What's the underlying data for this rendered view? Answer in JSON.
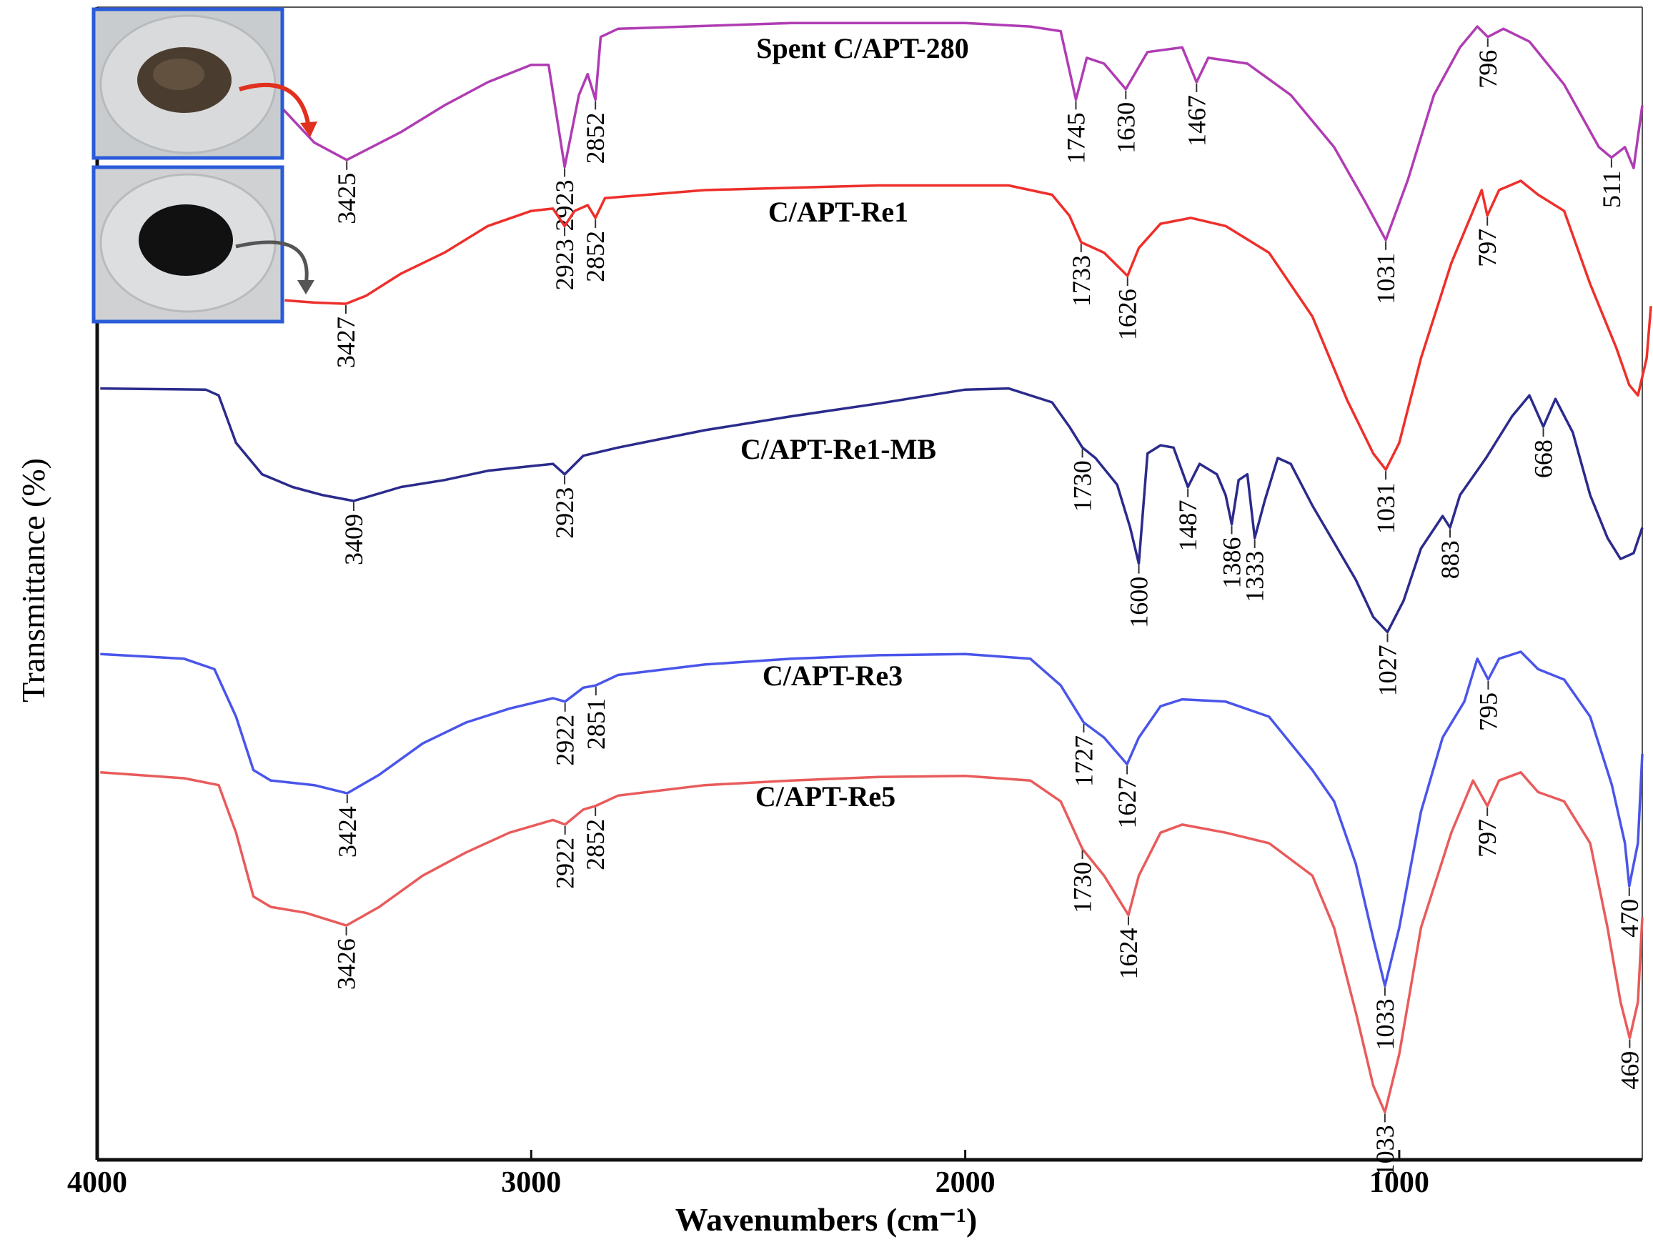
{
  "chart_data": {
    "type": "line",
    "x_label": "Wavenumbers (cm⁻¹)",
    "y_label": "Transmittance (%)",
    "xlim": [
      4000,
      440
    ],
    "ylim": [
      1,
      100
    ],
    "xticks": [
      4000,
      3000,
      2000,
      1000
    ],
    "x_reversed": true,
    "grid": false,
    "series": [
      {
        "name": "Spent C/APT-280",
        "color": "#b03cb3",
        "x": [
          3580,
          3500,
          3425,
          3300,
          3200,
          3100,
          3000,
          2960,
          2923,
          2890,
          2870,
          2852,
          2840,
          2800,
          2400,
          2000,
          1850,
          1780,
          1745,
          1720,
          1680,
          1630,
          1580,
          1500,
          1467,
          1440,
          1350,
          1250,
          1150,
          1080,
          1031,
          980,
          920,
          860,
          820,
          796,
          760,
          700,
          620,
          540,
          511,
          480,
          460,
          440
        ],
        "values": [
          91.9,
          88.7,
          87.2,
          89.6,
          91.9,
          93.9,
          95.4,
          95.4,
          86.6,
          92.8,
          94.6,
          92.4,
          97.8,
          98.5,
          99,
          99,
          98.7,
          98.3,
          92.4,
          96,
          95.5,
          93.3,
          96.5,
          96.9,
          93.9,
          96,
          95.5,
          92.8,
          88.3,
          83.7,
          80.3,
          85.5,
          92.8,
          96.9,
          98.7,
          97.8,
          98.5,
          97.4,
          93.7,
          88.3,
          87.4,
          88.3,
          86.5,
          91.9
        ],
        "peaks": [
          3425,
          2923,
          2852,
          1745,
          1630,
          1467,
          1031,
          796,
          511
        ]
      },
      {
        "name": "C/APT-Re1",
        "color": "#ee2f2a",
        "x": [
          3568,
          3500,
          3427,
          3380,
          3300,
          3200,
          3100,
          3000,
          2950,
          2923,
          2900,
          2870,
          2852,
          2830,
          2600,
          2200,
          1900,
          1800,
          1760,
          1733,
          1680,
          1626,
          1600,
          1550,
          1480,
          1400,
          1300,
          1200,
          1120,
          1060,
          1031,
          1000,
          950,
          880,
          830,
          810,
          797,
          770,
          720,
          680,
          620,
          560,
          500,
          470,
          450,
          430,
          420
        ],
        "values": [
          75.1,
          74.9,
          74.8,
          75.5,
          77.4,
          79.2,
          81.5,
          82.8,
          83,
          81.5,
          82.8,
          83.3,
          82.2,
          83.9,
          84.6,
          85,
          85,
          84.2,
          82.4,
          80.1,
          79.2,
          77.2,
          79.6,
          81.7,
          82.2,
          81.5,
          79.2,
          73.7,
          66.5,
          61.9,
          60.5,
          62.8,
          70.1,
          78.3,
          82.8,
          84.6,
          82.4,
          84.6,
          85.4,
          84.2,
          82.8,
          76.5,
          71,
          67.8,
          66.9,
          70.1,
          74.6
        ],
        "peaks": [
          3427,
          2923,
          2852,
          1733,
          1626,
          1031,
          797
        ]
      },
      {
        "name": "C/APT-Re1-MB",
        "color": "#2b2b8c",
        "x": [
          3993,
          3750,
          3720,
          3680,
          3620,
          3550,
          3480,
          3409,
          3300,
          3200,
          3100,
          3000,
          2950,
          2923,
          2880,
          2800,
          2600,
          2400,
          2200,
          2000,
          1900,
          1800,
          1760,
          1730,
          1700,
          1650,
          1620,
          1600,
          1580,
          1550,
          1520,
          1487,
          1460,
          1420,
          1400,
          1386,
          1370,
          1350,
          1333,
          1310,
          1280,
          1250,
          1200,
          1150,
          1100,
          1060,
          1027,
          990,
          950,
          900,
          883,
          860,
          800,
          740,
          700,
          668,
          640,
          600,
          560,
          520,
          490,
          460,
          440
        ],
        "values": [
          67.5,
          67.4,
          66.9,
          62.8,
          60.1,
          59,
          58.3,
          57.8,
          59,
          59.6,
          60.4,
          60.8,
          61,
          60.1,
          61.7,
          62.4,
          63.9,
          65.1,
          66.2,
          67.4,
          67.5,
          66.3,
          64.2,
          62.4,
          61.5,
          59.2,
          55.5,
          52.4,
          61.9,
          62.6,
          62.4,
          59,
          61,
          60.1,
          58.3,
          55.8,
          59.6,
          60.1,
          54.6,
          57.8,
          61.5,
          61,
          57.4,
          54.2,
          51,
          47.8,
          46.5,
          49.2,
          53.7,
          56.5,
          55.5,
          58.3,
          61.5,
          65.1,
          66.9,
          64.2,
          66.6,
          63.7,
          58.3,
          54.6,
          52.8,
          53.3,
          55.5
        ],
        "peaks": [
          3409,
          2923,
          1730,
          1600,
          1487,
          1386,
          1333,
          1027,
          883,
          668
        ]
      },
      {
        "name": "C/APT-Re3",
        "color": "#4a55ea",
        "x": [
          3993,
          3800,
          3730,
          3680,
          3640,
          3600,
          3500,
          3424,
          3350,
          3250,
          3150,
          3050,
          2950,
          2922,
          2880,
          2851,
          2800,
          2600,
          2400,
          2200,
          2000,
          1850,
          1780,
          1727,
          1680,
          1627,
          1600,
          1550,
          1500,
          1400,
          1300,
          1200,
          1150,
          1100,
          1060,
          1033,
          1000,
          950,
          900,
          850,
          820,
          795,
          770,
          720,
          680,
          620,
          560,
          510,
          480,
          470,
          450,
          440
        ],
        "values": [
          44.6,
          44.2,
          43.3,
          39.2,
          34.6,
          33.7,
          33.3,
          32.6,
          34.2,
          36.9,
          38.7,
          39.9,
          40.8,
          40.5,
          41.7,
          41.9,
          42.8,
          43.7,
          44.2,
          44.5,
          44.6,
          44.2,
          41.9,
          38.7,
          37.4,
          35.1,
          37.4,
          40.1,
          40.7,
          40.5,
          39.2,
          34.6,
          31.9,
          26.5,
          20.1,
          16,
          21,
          31,
          37.4,
          40.5,
          44.2,
          42.4,
          44.2,
          44.8,
          43.3,
          42.4,
          39.2,
          33.3,
          28.3,
          24.6,
          28.3,
          36
        ],
        "peaks": [
          3424,
          2922,
          2851,
          1727,
          1627,
          1033,
          795,
          470
        ]
      },
      {
        "name": "C/APT-Re5",
        "color": "#e95b5b",
        "x": [
          3993,
          3800,
          3720,
          3680,
          3640,
          3600,
          3520,
          3426,
          3350,
          3250,
          3150,
          3050,
          2950,
          2922,
          2880,
          2852,
          2800,
          2600,
          2400,
          2200,
          2000,
          1850,
          1780,
          1730,
          1680,
          1624,
          1600,
          1550,
          1500,
          1400,
          1300,
          1250,
          1200,
          1150,
          1100,
          1060,
          1033,
          1000,
          950,
          880,
          830,
          797,
          770,
          720,
          680,
          620,
          560,
          520,
          490,
          469,
          450,
          440
        ],
        "values": [
          34.4,
          33.9,
          33.3,
          29.2,
          23.7,
          22.8,
          22.3,
          21.2,
          22.8,
          25.5,
          27.5,
          29.2,
          30.3,
          29.9,
          31.2,
          31.5,
          32.4,
          33.3,
          33.7,
          34,
          34.1,
          33.7,
          31.9,
          27.8,
          25.5,
          22.1,
          25.5,
          29.2,
          29.9,
          29.2,
          28.3,
          26.9,
          25.5,
          21,
          13.7,
          7.4,
          5.1,
          10.1,
          21,
          29.2,
          33.7,
          31.5,
          33.7,
          34.4,
          32.7,
          31.9,
          28.3,
          21,
          14.6,
          11.5,
          14.6,
          21.9
        ],
        "peaks": [
          3426,
          2922,
          2852,
          1730,
          1624,
          1033,
          797,
          469
        ]
      }
    ]
  }
}
